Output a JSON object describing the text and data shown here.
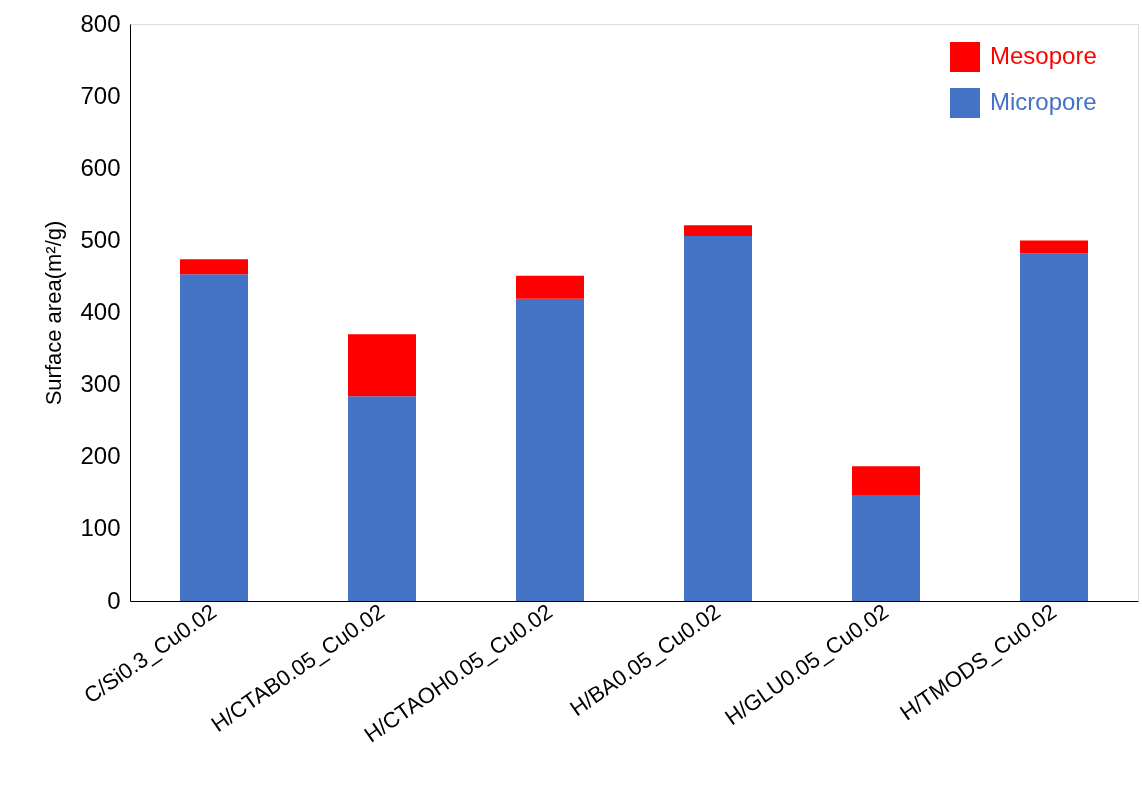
{
  "chart_data": {
    "type": "bar",
    "stacked": true,
    "ylabel": "Surface area(m²/g)",
    "categories": [
      "C/Si0.3_Cu0.02",
      "H/CTAB0.05_Cu0.02",
      "H/CTAOH0.05_Cu0.02",
      "H/BA0.05_Cu0.02",
      "H/GLU0.05_Cu0.02",
      "H/TMODS_Cu0.02"
    ],
    "series": [
      {
        "name": "Micropore",
        "color": "#4472c4",
        "values": [
          453,
          284,
          419,
          506,
          147,
          482
        ]
      },
      {
        "name": "Mesopore",
        "color": "#ff0000",
        "values": [
          21,
          86,
          32,
          15,
          40,
          18
        ]
      }
    ],
    "ylim": [
      0,
      800
    ],
    "yticks": [
      0,
      100,
      200,
      300,
      400,
      500,
      600,
      700,
      800
    ],
    "grid": false,
    "legend": "top right"
  }
}
